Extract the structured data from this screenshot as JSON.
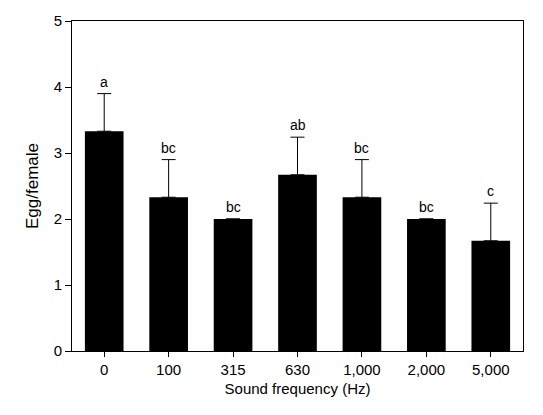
{
  "chart_data": {
    "type": "bar",
    "x_label": "Sound frequency (Hz)",
    "y_label": "Egg/female",
    "categories": [
      "0",
      "100",
      "315",
      "630",
      "1,000",
      "2,000",
      "5,000"
    ],
    "values": [
      3.33,
      2.33,
      2.0,
      2.67,
      2.33,
      2.0,
      1.67
    ],
    "error": [
      0.57,
      0.57,
      0,
      0.57,
      0.57,
      0,
      0.57
    ],
    "annotations": [
      "a",
      "bc",
      "bc",
      "ab",
      "bc",
      "bc",
      "c"
    ],
    "color": "#000000",
    "ylim": [
      0,
      5
    ],
    "yticks": [
      0,
      1,
      2,
      3,
      4,
      5
    ],
    "grid": false
  }
}
